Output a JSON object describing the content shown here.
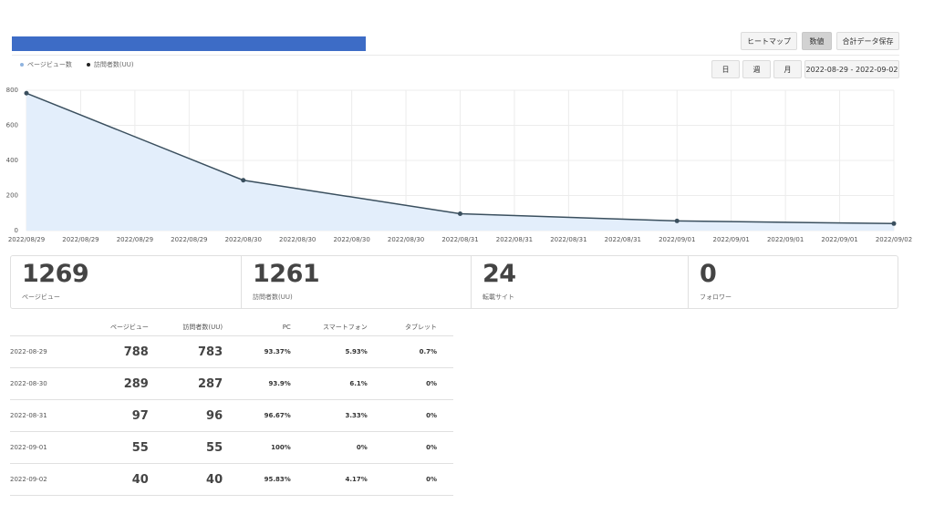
{
  "header": {
    "buttons": [
      {
        "label": "ヒートマップ"
      },
      {
        "label": "数値"
      },
      {
        "label": "合計データ保存"
      }
    ],
    "period_buttons": [
      {
        "label": "日"
      },
      {
        "label": "週"
      },
      {
        "label": "月"
      }
    ],
    "date_range": "2022-08-29 - 2022-09-02",
    "active_view": "数値"
  },
  "legend": {
    "pageviews": "ページビュー数",
    "visitors": "訪問者数(UU)"
  },
  "colors": {
    "accent": "#3d6cc6",
    "line": "#3a4f5e",
    "area": "#e3eefb",
    "pageview_dot": "#8fb3df",
    "visitor_dot": "#222222"
  },
  "chart_data": {
    "type": "line",
    "x_tick_labels": [
      "2022/08/29",
      "2022/08/29",
      "2022/08/29",
      "2022/08/29",
      "2022/08/30",
      "2022/08/30",
      "2022/08/30",
      "2022/08/30",
      "2022/08/31",
      "2022/08/31",
      "2022/08/31",
      "2022/08/31",
      "2022/09/01",
      "2022/09/01",
      "2022/09/01",
      "2022/09/01",
      "2022/09/02"
    ],
    "y_ticks": [
      0,
      200,
      400,
      600,
      800
    ],
    "ylim": [
      0,
      800
    ],
    "points": [
      {
        "x": "2022/08/29",
        "y": 783
      },
      {
        "x": "2022/08/30",
        "y": 287
      },
      {
        "x": "2022/08/31",
        "y": 96
      },
      {
        "x": "2022/09/01",
        "y": 55
      },
      {
        "x": "2022/09/02",
        "y": 40
      }
    ],
    "grid": true
  },
  "stats": [
    {
      "value": "1269",
      "label": "ページビュー"
    },
    {
      "value": "1261",
      "label": "訪問者数(UU)"
    },
    {
      "value": "24",
      "label": "転載サイト"
    },
    {
      "value": "0",
      "label": "フォロワー"
    }
  ],
  "table": {
    "headers": [
      "",
      "ページビュー",
      "訪問者数(UU)",
      "PC",
      "スマートフォン",
      "タブレット"
    ],
    "rows": [
      [
        "2022-08-29",
        "788",
        "783",
        "93.37%",
        "5.93%",
        "0.7%"
      ],
      [
        "2022-08-30",
        "289",
        "287",
        "93.9%",
        "6.1%",
        "0%"
      ],
      [
        "2022-08-31",
        "97",
        "96",
        "96.67%",
        "3.33%",
        "0%"
      ],
      [
        "2022-09-01",
        "55",
        "55",
        "100%",
        "0%",
        "0%"
      ],
      [
        "2022-09-02",
        "40",
        "40",
        "95.83%",
        "4.17%",
        "0%"
      ]
    ]
  }
}
